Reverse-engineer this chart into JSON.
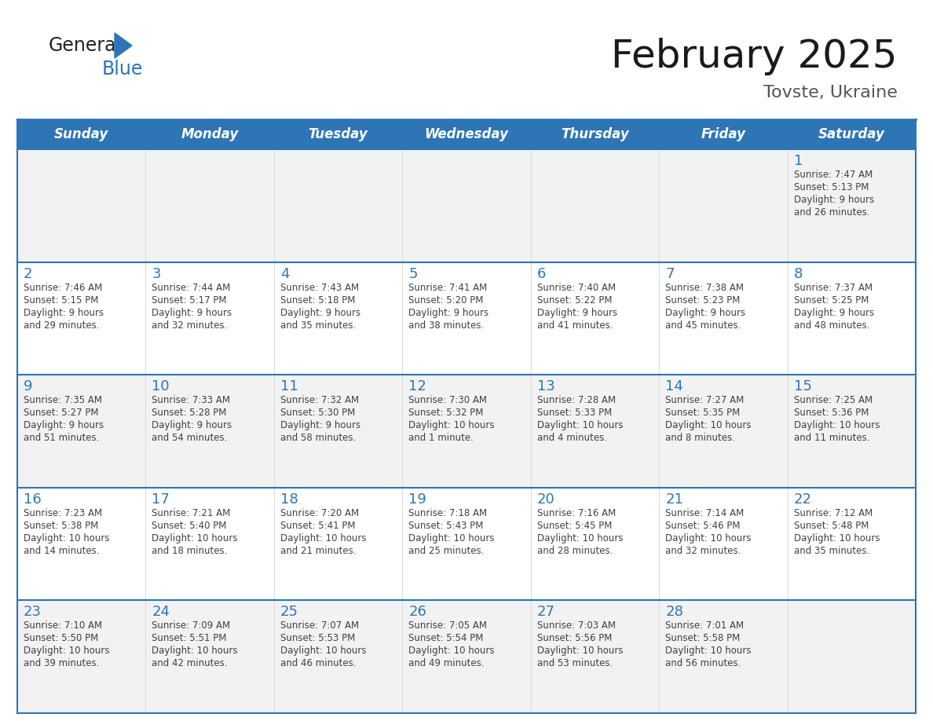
{
  "title": "February 2025",
  "subtitle": "Tovste, Ukraine",
  "days_of_week": [
    "Sunday",
    "Monday",
    "Tuesday",
    "Wednesday",
    "Thursday",
    "Friday",
    "Saturday"
  ],
  "header_bg": "#2E75B6",
  "header_text_color": "#FFFFFF",
  "cell_bg_odd": "#F2F2F2",
  "cell_bg_even": "#FFFFFF",
  "cell_text_color": "#404040",
  "day_num_color": "#2E75B6",
  "grid_color": "#2E75B6",
  "title_color": "#1a1a1a",
  "subtitle_color": "#555555",
  "logo_general_color": "#222222",
  "logo_blue_color": "#2E75B6",
  "calendar_data": [
    {
      "day": 1,
      "col": 6,
      "row": 0,
      "sunrise": "7:47 AM",
      "sunset": "5:13 PM",
      "daylight": "9 hours and 26 minutes."
    },
    {
      "day": 2,
      "col": 0,
      "row": 1,
      "sunrise": "7:46 AM",
      "sunset": "5:15 PM",
      "daylight": "9 hours and 29 minutes."
    },
    {
      "day": 3,
      "col": 1,
      "row": 1,
      "sunrise": "7:44 AM",
      "sunset": "5:17 PM",
      "daylight": "9 hours and 32 minutes."
    },
    {
      "day": 4,
      "col": 2,
      "row": 1,
      "sunrise": "7:43 AM",
      "sunset": "5:18 PM",
      "daylight": "9 hours and 35 minutes."
    },
    {
      "day": 5,
      "col": 3,
      "row": 1,
      "sunrise": "7:41 AM",
      "sunset": "5:20 PM",
      "daylight": "9 hours and 38 minutes."
    },
    {
      "day": 6,
      "col": 4,
      "row": 1,
      "sunrise": "7:40 AM",
      "sunset": "5:22 PM",
      "daylight": "9 hours and 41 minutes."
    },
    {
      "day": 7,
      "col": 5,
      "row": 1,
      "sunrise": "7:38 AM",
      "sunset": "5:23 PM",
      "daylight": "9 hours and 45 minutes."
    },
    {
      "day": 8,
      "col": 6,
      "row": 1,
      "sunrise": "7:37 AM",
      "sunset": "5:25 PM",
      "daylight": "9 hours and 48 minutes."
    },
    {
      "day": 9,
      "col": 0,
      "row": 2,
      "sunrise": "7:35 AM",
      "sunset": "5:27 PM",
      "daylight": "9 hours and 51 minutes."
    },
    {
      "day": 10,
      "col": 1,
      "row": 2,
      "sunrise": "7:33 AM",
      "sunset": "5:28 PM",
      "daylight": "9 hours and 54 minutes."
    },
    {
      "day": 11,
      "col": 2,
      "row": 2,
      "sunrise": "7:32 AM",
      "sunset": "5:30 PM",
      "daylight": "9 hours and 58 minutes."
    },
    {
      "day": 12,
      "col": 3,
      "row": 2,
      "sunrise": "7:30 AM",
      "sunset": "5:32 PM",
      "daylight": "10 hours and 1 minute."
    },
    {
      "day": 13,
      "col": 4,
      "row": 2,
      "sunrise": "7:28 AM",
      "sunset": "5:33 PM",
      "daylight": "10 hours and 4 minutes."
    },
    {
      "day": 14,
      "col": 5,
      "row": 2,
      "sunrise": "7:27 AM",
      "sunset": "5:35 PM",
      "daylight": "10 hours and 8 minutes."
    },
    {
      "day": 15,
      "col": 6,
      "row": 2,
      "sunrise": "7:25 AM",
      "sunset": "5:36 PM",
      "daylight": "10 hours and 11 minutes."
    },
    {
      "day": 16,
      "col": 0,
      "row": 3,
      "sunrise": "7:23 AM",
      "sunset": "5:38 PM",
      "daylight": "10 hours and 14 minutes."
    },
    {
      "day": 17,
      "col": 1,
      "row": 3,
      "sunrise": "7:21 AM",
      "sunset": "5:40 PM",
      "daylight": "10 hours and 18 minutes."
    },
    {
      "day": 18,
      "col": 2,
      "row": 3,
      "sunrise": "7:20 AM",
      "sunset": "5:41 PM",
      "daylight": "10 hours and 21 minutes."
    },
    {
      "day": 19,
      "col": 3,
      "row": 3,
      "sunrise": "7:18 AM",
      "sunset": "5:43 PM",
      "daylight": "10 hours and 25 minutes."
    },
    {
      "day": 20,
      "col": 4,
      "row": 3,
      "sunrise": "7:16 AM",
      "sunset": "5:45 PM",
      "daylight": "10 hours and 28 minutes."
    },
    {
      "day": 21,
      "col": 5,
      "row": 3,
      "sunrise": "7:14 AM",
      "sunset": "5:46 PM",
      "daylight": "10 hours and 32 minutes."
    },
    {
      "day": 22,
      "col": 6,
      "row": 3,
      "sunrise": "7:12 AM",
      "sunset": "5:48 PM",
      "daylight": "10 hours and 35 minutes."
    },
    {
      "day": 23,
      "col": 0,
      "row": 4,
      "sunrise": "7:10 AM",
      "sunset": "5:50 PM",
      "daylight": "10 hours and 39 minutes."
    },
    {
      "day": 24,
      "col": 1,
      "row": 4,
      "sunrise": "7:09 AM",
      "sunset": "5:51 PM",
      "daylight": "10 hours and 42 minutes."
    },
    {
      "day": 25,
      "col": 2,
      "row": 4,
      "sunrise": "7:07 AM",
      "sunset": "5:53 PM",
      "daylight": "10 hours and 46 minutes."
    },
    {
      "day": 26,
      "col": 3,
      "row": 4,
      "sunrise": "7:05 AM",
      "sunset": "5:54 PM",
      "daylight": "10 hours and 49 minutes."
    },
    {
      "day": 27,
      "col": 4,
      "row": 4,
      "sunrise": "7:03 AM",
      "sunset": "5:56 PM",
      "daylight": "10 hours and 53 minutes."
    },
    {
      "day": 28,
      "col": 5,
      "row": 4,
      "sunrise": "7:01 AM",
      "sunset": "5:58 PM",
      "daylight": "10 hours and 56 minutes."
    }
  ]
}
